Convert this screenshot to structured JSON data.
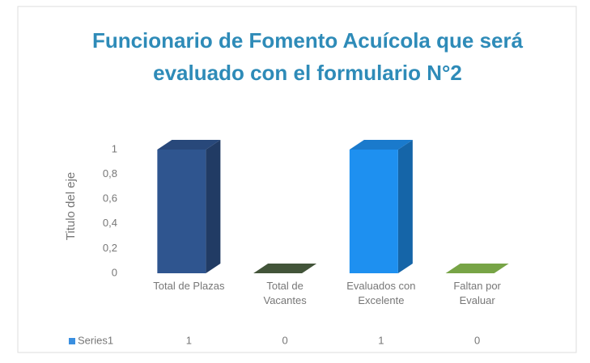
{
  "chart_data": {
    "type": "bar3d",
    "title": "Funcionario de Fomento Acuícola que será evaluado con el formulario N°2",
    "y_axis_label": "Titulo del eje",
    "categories": [
      "Total de Plazas",
      "Total de Vacantes",
      "Evaluados con Excelente",
      "Faltan por Evaluar"
    ],
    "series": [
      {
        "name": "Series1",
        "color": "#3a8fe0",
        "values": [
          1,
          0,
          1,
          0
        ]
      }
    ],
    "colors": [
      "#2f558f",
      "#4e6343",
      "#1e90f0",
      "#8cc152"
    ],
    "ylim": [
      0,
      1
    ],
    "yticks": [
      0,
      {
        "value": 0.2,
        "label": "0,2"
      },
      {
        "value": 0.4,
        "label": "0,4"
      },
      {
        "value": 0.6,
        "label": "0,6"
      },
      {
        "value": 0.8,
        "label": "0,8"
      },
      1
    ],
    "data_table": true
  }
}
